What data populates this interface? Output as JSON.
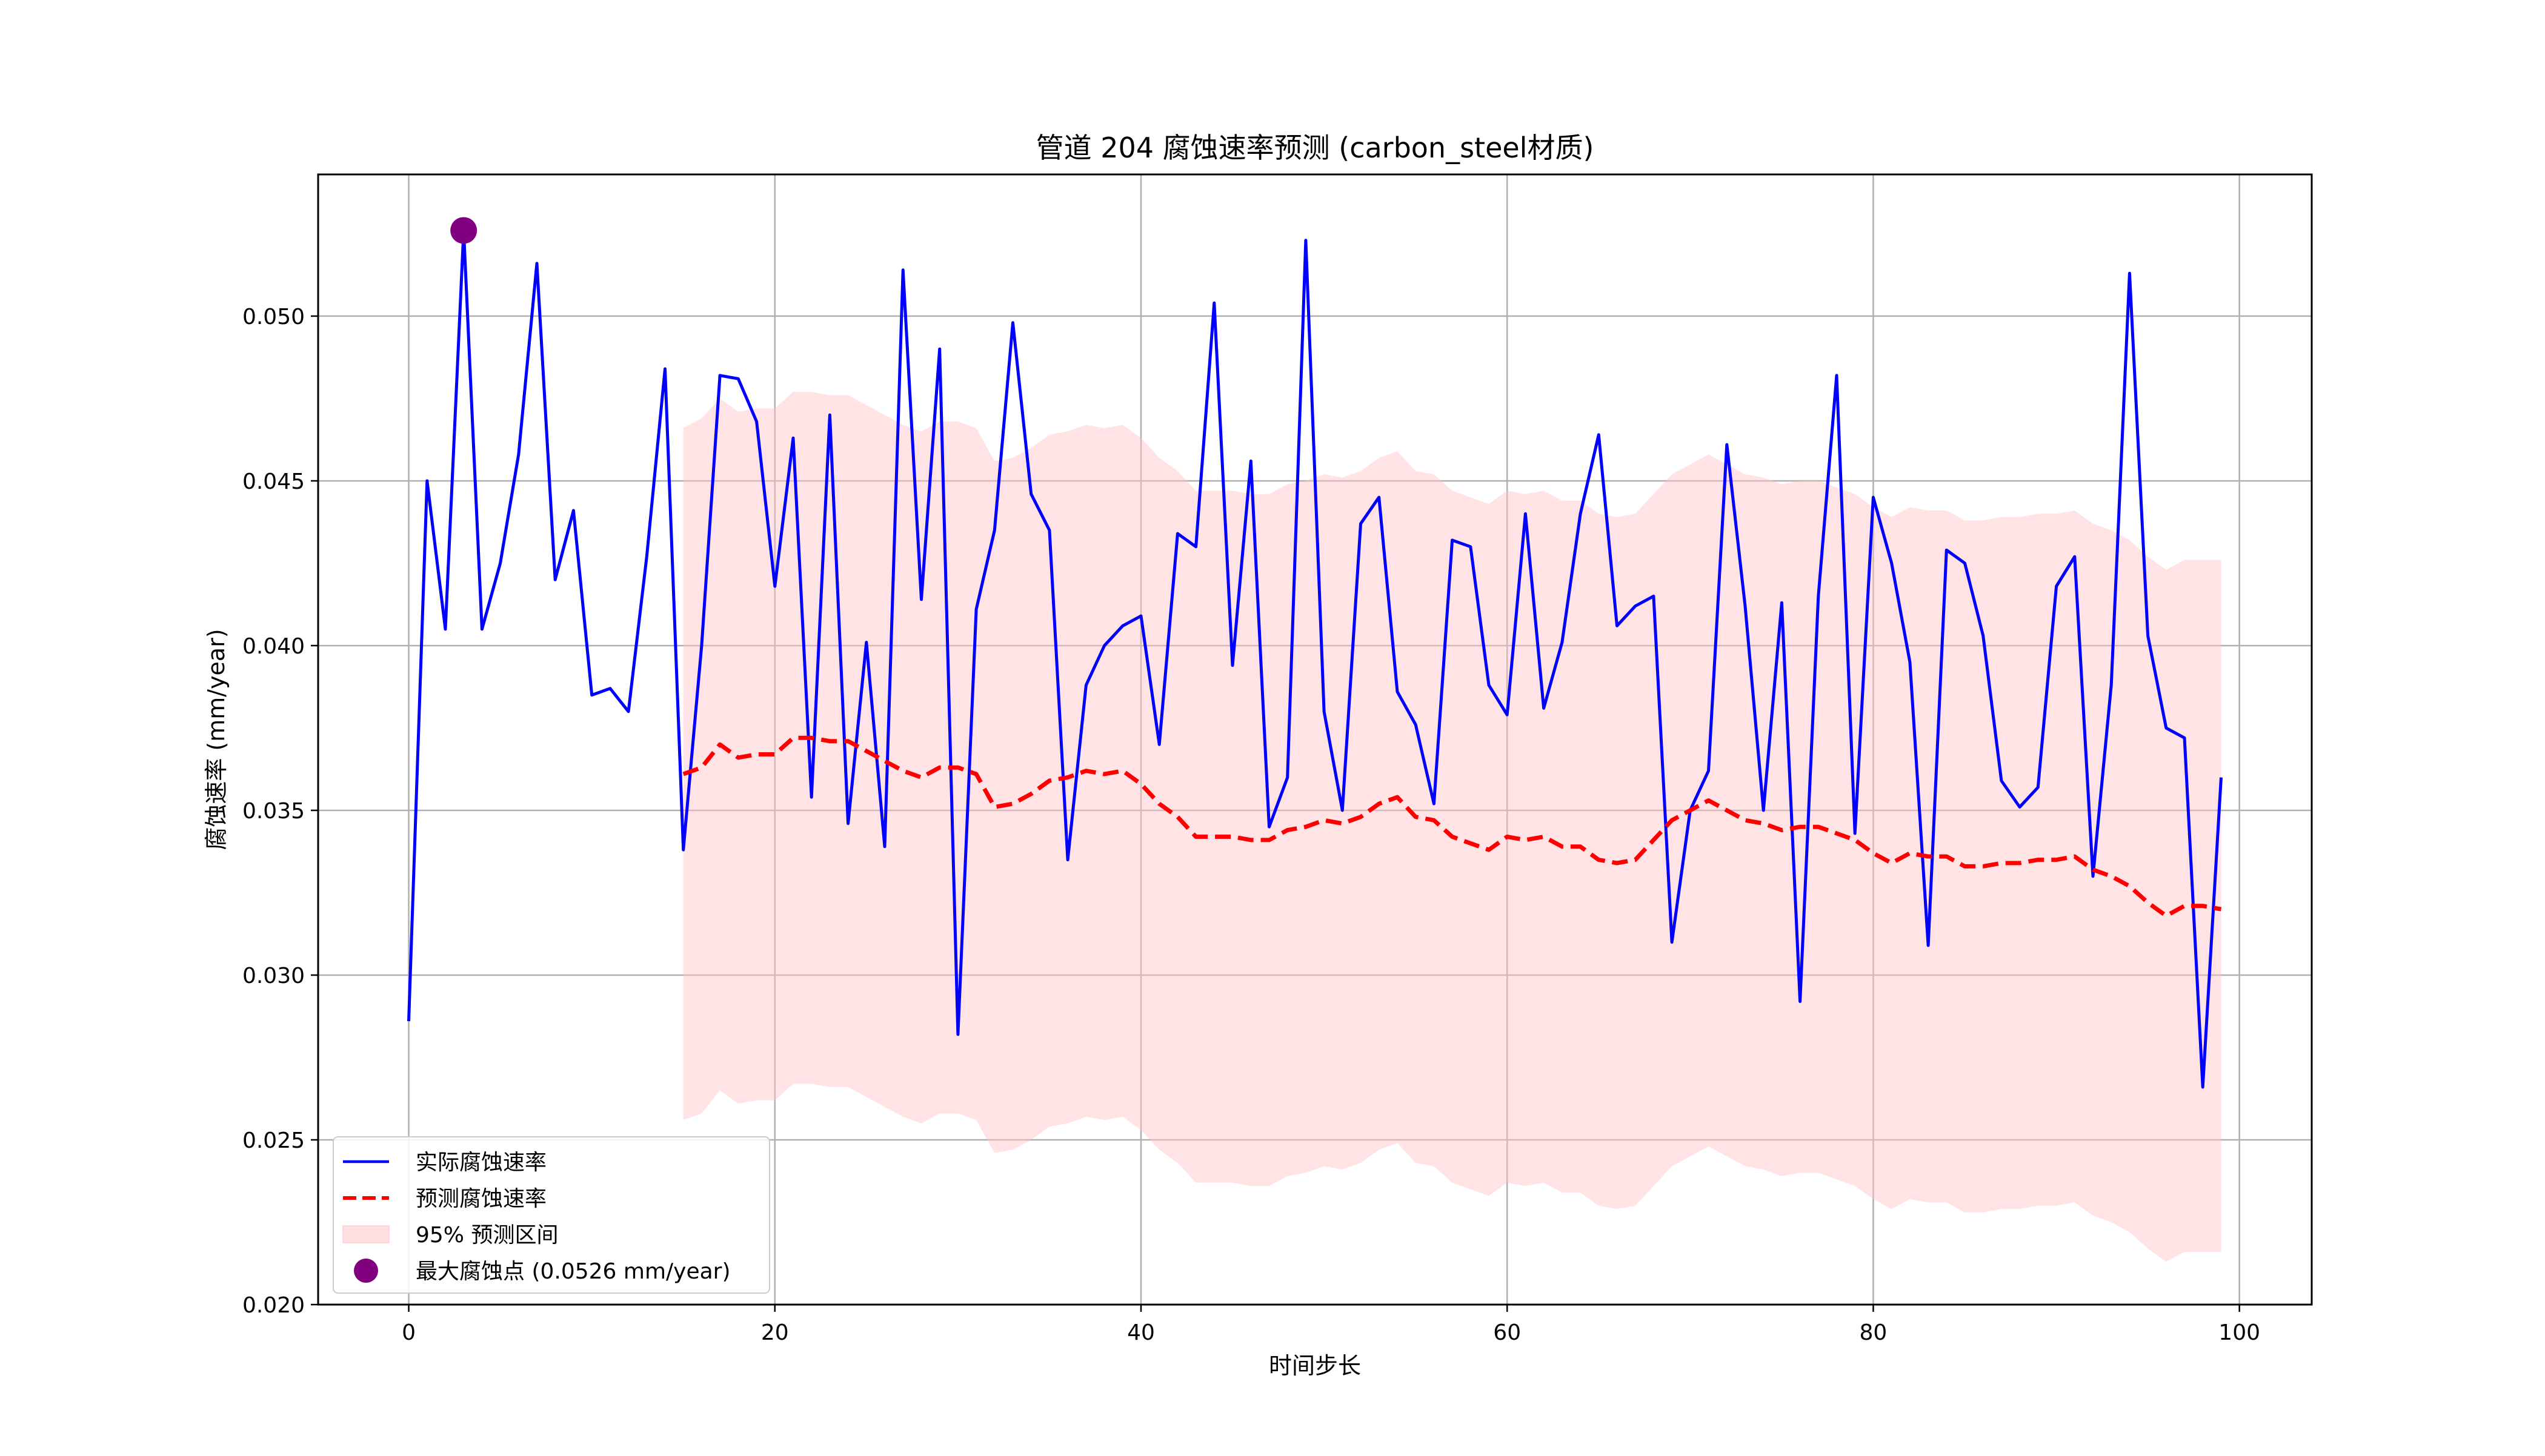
{
  "chart_data": {
    "type": "line",
    "title": "管道 204 腐蚀速率预测 (carbon_steel材质)",
    "xlabel": "时间步长",
    "ylabel": "腐蚀速率 (mm/year)",
    "xlim": [
      -4.95,
      103.95
    ],
    "ylim": [
      0.02,
      0.0543
    ],
    "x_ticks": [
      0,
      20,
      40,
      60,
      80,
      100
    ],
    "x_tick_labels": [
      "0",
      "20",
      "40",
      "60",
      "80",
      "100"
    ],
    "y_ticks": [
      0.02,
      0.025,
      0.03,
      0.035,
      0.04,
      0.045,
      0.05
    ],
    "y_tick_labels": [
      "0.020",
      "0.025",
      "0.030",
      "0.035",
      "0.040",
      "0.045",
      "0.050"
    ],
    "grid": true,
    "legend_position": "lower-left",
    "colors": {
      "actual": "#0000ff",
      "predicted": "#ff0000",
      "interval_fill": "#ffc0c5",
      "max_point": "#800080"
    },
    "series": [
      {
        "name": "实际腐蚀速率",
        "style": "solid",
        "x_start": 0,
        "values": [
          0.0286,
          0.045,
          0.0405,
          0.0526,
          0.0405,
          0.0425,
          0.0458,
          0.0516,
          0.042,
          0.0441,
          0.0385,
          0.0387,
          0.038,
          0.0427,
          0.0484,
          0.0338,
          0.04,
          0.0482,
          0.0481,
          0.0468,
          0.0418,
          0.0463,
          0.0354,
          0.047,
          0.0346,
          0.0401,
          0.0339,
          0.0514,
          0.0414,
          0.049,
          0.0282,
          0.0411,
          0.0435,
          0.0498,
          0.0446,
          0.0435,
          0.0335,
          0.0388,
          0.04,
          0.0406,
          0.0409,
          0.037,
          0.0434,
          0.043,
          0.0504,
          0.0394,
          0.0456,
          0.0345,
          0.036,
          0.0523,
          0.038,
          0.035,
          0.0437,
          0.0445,
          0.0386,
          0.0376,
          0.0352,
          0.0432,
          0.043,
          0.0388,
          0.0379,
          0.044,
          0.0381,
          0.0401,
          0.044,
          0.0464,
          0.0406,
          0.0412,
          0.0415,
          0.031,
          0.035,
          0.0362,
          0.0461,
          0.0412,
          0.035,
          0.0413,
          0.0292,
          0.0415,
          0.0482,
          0.0343,
          0.0445,
          0.0425,
          0.0395,
          0.0309,
          0.0429,
          0.0425,
          0.0403,
          0.0359,
          0.0351,
          0.0357,
          0.0418,
          0.0427,
          0.033,
          0.0388,
          0.0513,
          0.0403,
          0.0375,
          0.0372,
          0.0266,
          0.036
        ]
      },
      {
        "name": "预测腐蚀速率",
        "style": "dashed",
        "x_start": 15,
        "values": [
          0.0361,
          0.0363,
          0.037,
          0.0366,
          0.0367,
          0.0367,
          0.0372,
          0.0372,
          0.0371,
          0.0371,
          0.0368,
          0.0365,
          0.0362,
          0.036,
          0.0363,
          0.0363,
          0.0361,
          0.0351,
          0.0352,
          0.0355,
          0.0359,
          0.036,
          0.0362,
          0.0361,
          0.0362,
          0.0358,
          0.0352,
          0.0348,
          0.0342,
          0.0342,
          0.0342,
          0.0341,
          0.0341,
          0.0344,
          0.0345,
          0.0347,
          0.0346,
          0.0348,
          0.0352,
          0.0354,
          0.0348,
          0.0347,
          0.0342,
          0.034,
          0.0338,
          0.0342,
          0.0341,
          0.0342,
          0.0339,
          0.0339,
          0.0335,
          0.0334,
          0.0335,
          0.0341,
          0.0347,
          0.035,
          0.0353,
          0.035,
          0.0347,
          0.0346,
          0.0344,
          0.0345,
          0.0345,
          0.0343,
          0.0341,
          0.0337,
          0.0334,
          0.0337,
          0.0336,
          0.0336,
          0.0333,
          0.0333,
          0.0334,
          0.0334,
          0.0335,
          0.0335,
          0.0336,
          0.0332,
          0.033,
          0.0327,
          0.0322,
          0.0318,
          0.0321,
          0.0321,
          0.032
        ]
      }
    ],
    "interval": {
      "name": "95% 预测区间",
      "x_start": 15,
      "upper": [
        0.0466,
        0.0469,
        0.0475,
        0.0471,
        0.0472,
        0.0472,
        0.0477,
        0.0477,
        0.0476,
        0.0476,
        0.0473,
        0.047,
        0.0467,
        0.0465,
        0.0468,
        0.0468,
        0.0466,
        0.0456,
        0.0457,
        0.046,
        0.0464,
        0.0465,
        0.0467,
        0.0466,
        0.0467,
        0.0463,
        0.0457,
        0.0453,
        0.0447,
        0.0447,
        0.0447,
        0.0446,
        0.0446,
        0.0449,
        0.045,
        0.0452,
        0.0451,
        0.0453,
        0.0457,
        0.0459,
        0.0453,
        0.0452,
        0.0447,
        0.0445,
        0.0443,
        0.0447,
        0.0446,
        0.0447,
        0.0444,
        0.0444,
        0.044,
        0.0439,
        0.044,
        0.0446,
        0.0452,
        0.0455,
        0.0458,
        0.0455,
        0.0452,
        0.0451,
        0.0449,
        0.045,
        0.045,
        0.0448,
        0.0446,
        0.0442,
        0.0439,
        0.0442,
        0.0441,
        0.0441,
        0.0438,
        0.0438,
        0.0439,
        0.0439,
        0.044,
        0.044,
        0.0441,
        0.0437,
        0.0435,
        0.0432,
        0.0427,
        0.0423,
        0.0426,
        0.0426,
        0.0426
      ],
      "lower": [
        0.0256,
        0.0258,
        0.0265,
        0.0261,
        0.0262,
        0.0262,
        0.0267,
        0.0267,
        0.0266,
        0.0266,
        0.0263,
        0.026,
        0.0257,
        0.0255,
        0.0258,
        0.0258,
        0.0256,
        0.0246,
        0.0247,
        0.025,
        0.0254,
        0.0255,
        0.0257,
        0.0256,
        0.0257,
        0.0253,
        0.0247,
        0.0243,
        0.0237,
        0.0237,
        0.0237,
        0.0236,
        0.0236,
        0.0239,
        0.024,
        0.0242,
        0.0241,
        0.0243,
        0.0247,
        0.0249,
        0.0243,
        0.0242,
        0.0237,
        0.0235,
        0.0233,
        0.0237,
        0.0236,
        0.0237,
        0.0234,
        0.0234,
        0.023,
        0.0229,
        0.023,
        0.0236,
        0.0242,
        0.0245,
        0.0248,
        0.0245,
        0.0242,
        0.0241,
        0.0239,
        0.024,
        0.024,
        0.0238,
        0.0236,
        0.0232,
        0.0229,
        0.0232,
        0.0231,
        0.0231,
        0.0228,
        0.0228,
        0.0229,
        0.0229,
        0.023,
        0.023,
        0.0231,
        0.0227,
        0.0225,
        0.0222,
        0.0217,
        0.0213,
        0.0216,
        0.0216,
        0.0216
      ]
    },
    "max_point": {
      "name": "最大腐蚀点 (0.0526 mm/year)",
      "x": 3,
      "y": 0.0526
    }
  }
}
